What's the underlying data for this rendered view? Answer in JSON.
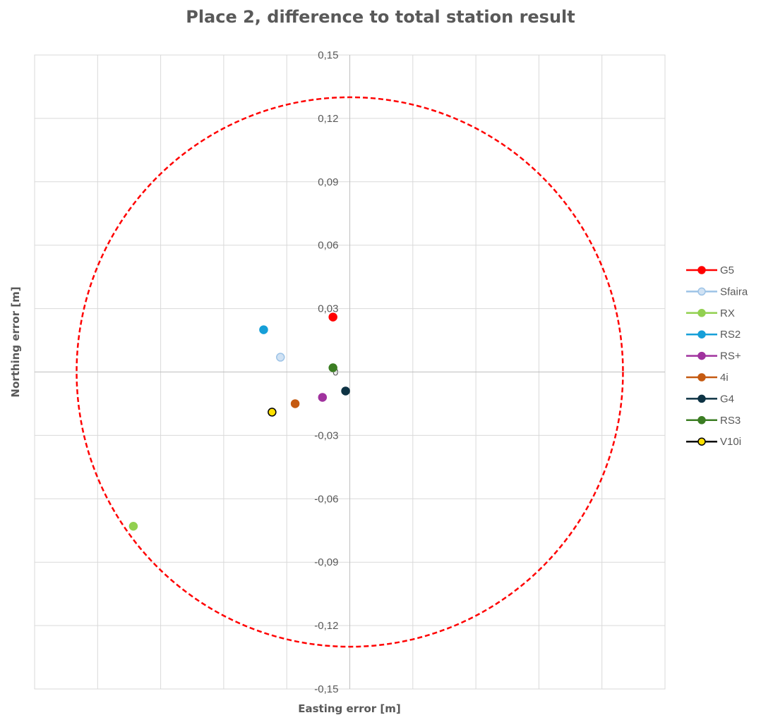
{
  "chart_data": {
    "type": "scatter",
    "title": "Place 2, difference to total station result",
    "xlabel": "Easting error [m]",
    "ylabel": "Northing error [m]",
    "xlim": [
      -0.15,
      0.15
    ],
    "ylim": [
      -0.15,
      0.15
    ],
    "y_ticks": [
      "-0,15",
      "-0,12",
      "-0,09",
      "-0,06",
      "-0,03",
      "0",
      "0,03",
      "0,06",
      "0,09",
      "0,12",
      "0,15"
    ],
    "grid": true,
    "legend_position": "right",
    "circle": {
      "radius": 0.13,
      "color": "#ff0000",
      "style": "dashed"
    },
    "series": [
      {
        "name": "G5",
        "x": -0.008,
        "y": 0.026,
        "color": "#ff0000",
        "edge": "#ff0000"
      },
      {
        "name": "Sfaira",
        "x": -0.033,
        "y": 0.007,
        "color": "#d0e2f4",
        "edge": "#9dc3e6"
      },
      {
        "name": "RX",
        "x": -0.103,
        "y": -0.073,
        "color": "#92d050",
        "edge": "#92d050"
      },
      {
        "name": "RS2",
        "x": -0.041,
        "y": 0.02,
        "color": "#169fd8",
        "edge": "#169fd8"
      },
      {
        "name": "RS+",
        "x": -0.013,
        "y": -0.012,
        "color": "#a0329e",
        "edge": "#a0329e"
      },
      {
        "name": "4i",
        "x": -0.026,
        "y": -0.015,
        "color": "#c55a11",
        "edge": "#c55a11"
      },
      {
        "name": "G4",
        "x": -0.002,
        "y": -0.009,
        "color": "#0e3344",
        "edge": "#0e3344"
      },
      {
        "name": "RS3",
        "x": -0.008,
        "y": 0.002,
        "color": "#3b7d23",
        "edge": "#3b7d23"
      },
      {
        "name": "V10i",
        "x": -0.037,
        "y": -0.019,
        "color": "#ffe000",
        "edge": "#000000"
      }
    ]
  }
}
